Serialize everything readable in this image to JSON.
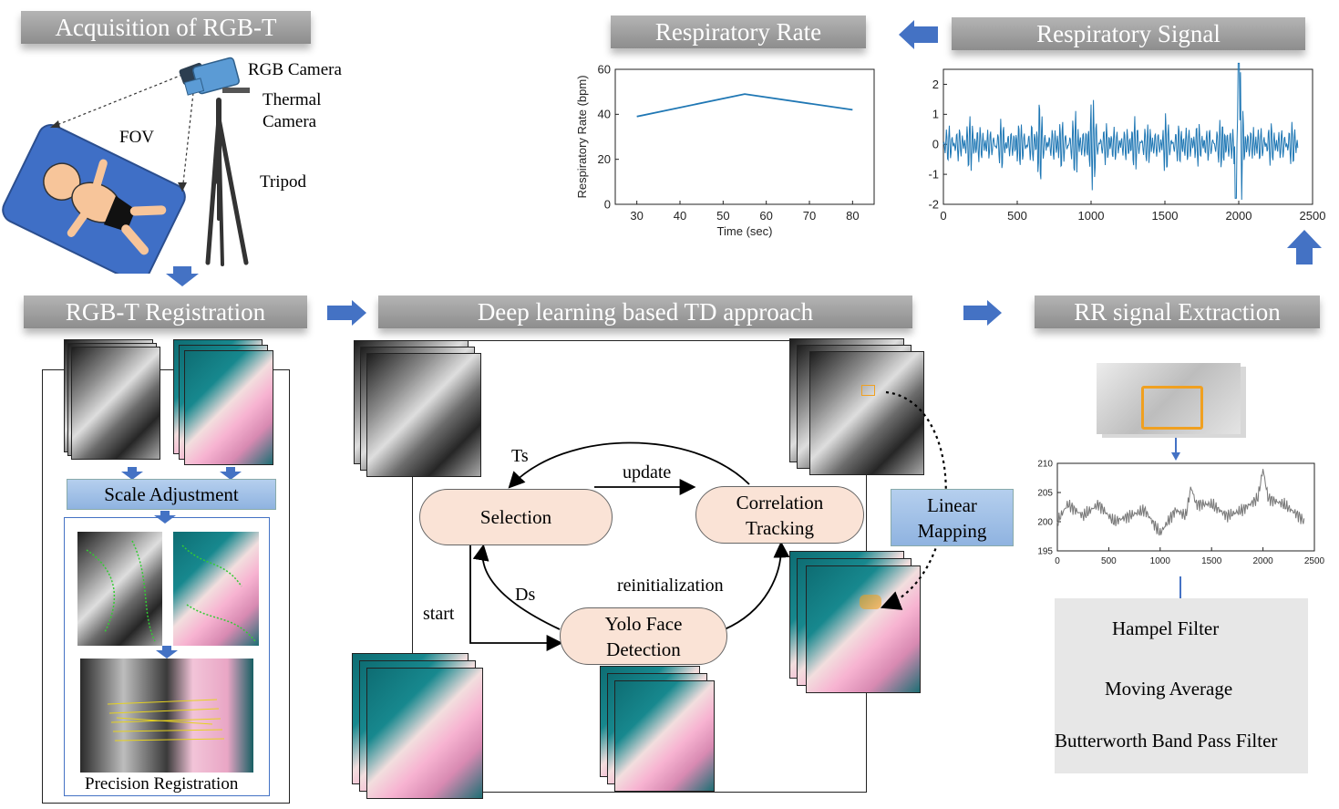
{
  "titles": {
    "acquisition": "Acquisition of RGB-T",
    "registration": "RGB-T Registration",
    "td": "Deep learning based TD approach",
    "extraction": "RR signal Extraction",
    "rate": "Respiratory Rate",
    "signal": "Respiratory Signal"
  },
  "acquisition": {
    "rgb_camera": "RGB Camera",
    "thermal_camera_1": "Thermal",
    "thermal_camera_2": "Camera",
    "fov": "FOV",
    "tripod": "Tripod"
  },
  "registration": {
    "scale_adjustment": "Scale Adjustment",
    "precision_registration": "Precision Registration"
  },
  "td": {
    "selection": "Selection",
    "correlation_1": "Correlation",
    "correlation_2": "Tracking",
    "yolo_1": "Yolo Face",
    "yolo_2": "Detection",
    "linear_1": "Linear",
    "linear_2": "Mapping",
    "ts": "Ts",
    "ds": "Ds",
    "update": "update",
    "reinitialization": "reinitialization",
    "start": "start"
  },
  "extraction": {
    "hampel": "Hampel Filter",
    "moving": "Moving Average",
    "butterworth": "Butterworth Band Pass Filter"
  },
  "colors": {
    "signal_line": "#1f77b4",
    "arrow_blue": "#4472c4",
    "pill_fill": "#fae3d6",
    "box_blue": "#9dbbe3",
    "roi_orange": "#f0a020"
  },
  "chart_data": [
    {
      "type": "line",
      "title": "",
      "xlabel": "Time (sec)",
      "ylabel": "Respiratory Rate (bpm)",
      "x": [
        30,
        55,
        80
      ],
      "y": [
        39,
        49,
        42
      ],
      "xlim": [
        25,
        85
      ],
      "ylim": [
        0,
        60
      ],
      "xticks": [
        30,
        40,
        50,
        60,
        70,
        80
      ],
      "yticks": [
        0,
        20,
        40,
        60
      ]
    },
    {
      "type": "line",
      "title": "",
      "xlabel": "",
      "ylabel": "",
      "xlim": [
        0,
        2500
      ],
      "ylim": [
        -2,
        2.5
      ],
      "xticks": [
        0,
        500,
        1000,
        1500,
        2000,
        2500
      ],
      "yticks": [
        -2,
        -1,
        0,
        1,
        2
      ],
      "n_samples": 2400,
      "x": [
        0,
        100,
        200,
        300,
        400,
        500,
        600,
        650,
        700,
        800,
        900,
        1000,
        1100,
        1200,
        1300,
        1400,
        1500,
        1600,
        1700,
        1800,
        1900,
        1980,
        2000,
        2100,
        2200,
        2300,
        2400
      ],
      "y": [
        0.2,
        -0.8,
        1.4,
        -0.5,
        0.8,
        -1.0,
        1.1,
        -1.8,
        0.9,
        -1.1,
        1.2,
        -1.7,
        1.0,
        -0.9,
        1.2,
        -0.8,
        1.0,
        -1.0,
        1.2,
        -0.7,
        1.1,
        -1.8,
        2.7,
        -0.8,
        1.0,
        -0.6,
        -0.5
      ]
    },
    {
      "type": "line",
      "title": "",
      "xlabel": "",
      "ylabel": "",
      "xlim": [
        0,
        2500
      ],
      "ylim": [
        195,
        210
      ],
      "xticks": [
        0,
        500,
        1000,
        1500,
        2000,
        2500
      ],
      "yticks": [
        195,
        200,
        205,
        210
      ],
      "x": [
        0,
        100,
        250,
        400,
        550,
        700,
        850,
        1000,
        1150,
        1250,
        1300,
        1350,
        1500,
        1650,
        1800,
        1950,
        2000,
        2050,
        2200,
        2350,
        2400
      ],
      "y": [
        200,
        203,
        201,
        203,
        200,
        201,
        202,
        198,
        202,
        201,
        206,
        203,
        203,
        201,
        202,
        204,
        209,
        204,
        203,
        201,
        200
      ]
    }
  ]
}
